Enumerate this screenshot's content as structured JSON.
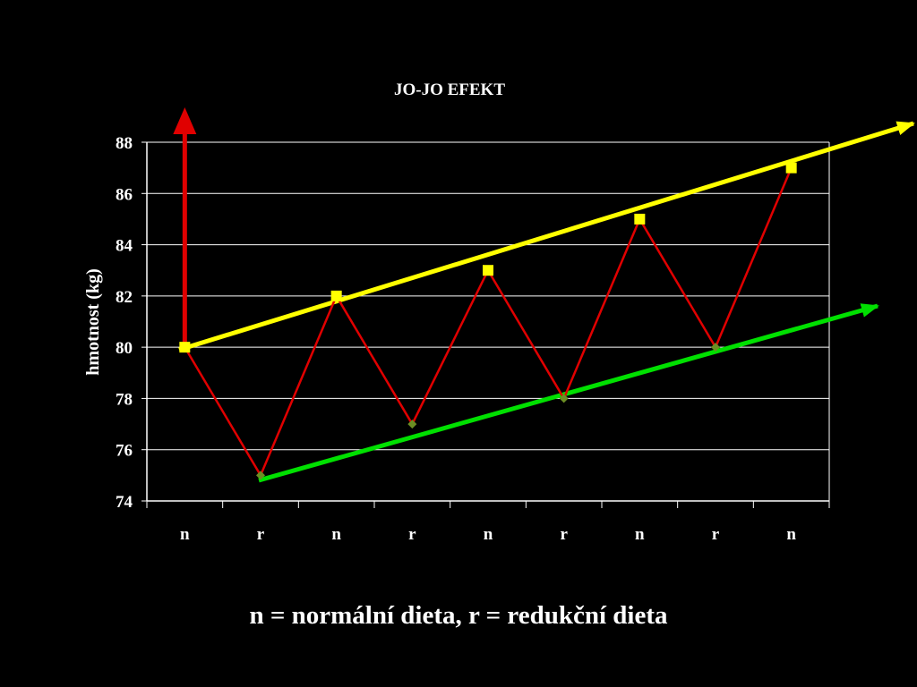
{
  "note": "n = normální dieta, r = redukční dieta",
  "colors": {
    "background": "#000000",
    "axis": "#ffffff",
    "gridline": "#ffffff",
    "series_line": "#e00000",
    "marker_high": "#ffff00",
    "marker_low": "#6b8e23",
    "upper_trend": "#ffff00",
    "lower_trend": "#00e000",
    "start_arrow": "#e00000"
  },
  "chart_data": {
    "type": "line",
    "title": "JO-JO EFEKT",
    "xlabel": "",
    "ylabel": "hmotnost (kg)",
    "categories": [
      "n",
      "r",
      "n",
      "r",
      "n",
      "r",
      "n",
      "r",
      "n"
    ],
    "series": [
      {
        "values": [
          80,
          75,
          82,
          77,
          83,
          78,
          85,
          80,
          87
        ]
      }
    ],
    "ylim": [
      74,
      88
    ],
    "yticks": [
      74,
      76,
      78,
      80,
      82,
      84,
      86,
      88
    ],
    "grid": true,
    "annotations": [
      {
        "type": "arrow",
        "color": "red",
        "description": "vertical arrow from first point upward"
      },
      {
        "type": "arrow",
        "color": "yellow",
        "description": "upward trend through peaks"
      },
      {
        "type": "arrow",
        "color": "green",
        "description": "upward trend through troughs"
      }
    ]
  }
}
